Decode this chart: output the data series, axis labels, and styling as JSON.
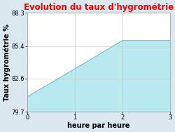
{
  "title": "Evolution du taux d'hygrométrie",
  "title_color": "#ff0000",
  "xlabel": "heure par heure",
  "ylabel": "Taux hygrométrie %",
  "x": [
    0,
    2,
    3
  ],
  "y": [
    81.0,
    85.9,
    85.9
  ],
  "ylim": [
    79.7,
    88.3
  ],
  "xlim": [
    0,
    3
  ],
  "yticks": [
    79.7,
    82.6,
    85.4,
    88.3
  ],
  "xticks": [
    0,
    1,
    2,
    3
  ],
  "fill_color": "#b8e8f0",
  "fill_alpha": 1.0,
  "line_color": "#60c8d8",
  "line_width": 0.8,
  "bg_color": "#dce8f0",
  "plot_bg_color": "#ffffff",
  "grid_color": "#cccccc",
  "title_fontsize": 8.5,
  "label_fontsize": 7,
  "tick_fontsize": 6
}
